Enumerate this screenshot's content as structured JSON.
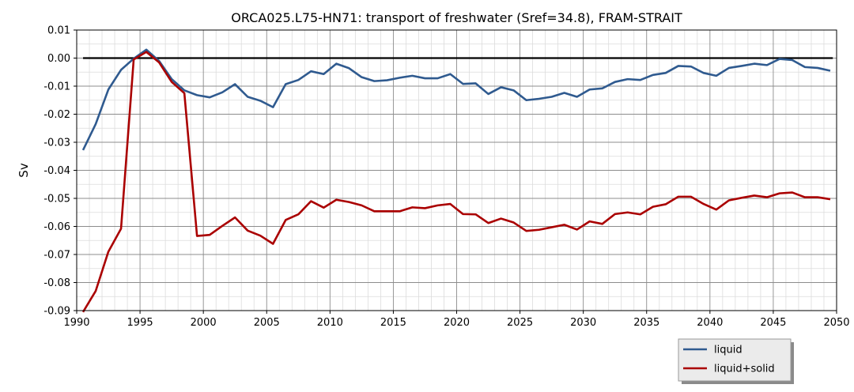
{
  "chart_data": {
    "type": "line",
    "title": "ORCA025.L75-HN71: transport of freshwater (Sref=34.8), FRAM-STRAIT",
    "xlabel": "",
    "ylabel": "Sv",
    "xlim": [
      1990,
      2050
    ],
    "ylim": [
      -0.09,
      0.01
    ],
    "xticks": [
      1990,
      1995,
      2000,
      2005,
      2010,
      2015,
      2020,
      2025,
      2030,
      2035,
      2040,
      2045,
      2050
    ],
    "yticks": [
      0.01,
      0.0,
      -0.01,
      -0.02,
      -0.03,
      -0.04,
      -0.05,
      -0.06,
      -0.07,
      -0.08,
      -0.09
    ],
    "ytick_labels": [
      "0.01",
      "0.00",
      "-0.01",
      "-0.02",
      "-0.03",
      "-0.04",
      "-0.05",
      "-0.06",
      "-0.07",
      "-0.08",
      "-0.09"
    ],
    "grid": true,
    "minor_grid": true,
    "reference_line": 0.0,
    "legend_position": "below-right",
    "x": [
      1990.5,
      1991.5,
      1992.5,
      1993.5,
      1994.5,
      1995.5,
      1996.5,
      1997.5,
      1998.5,
      1999.5,
      2000.5,
      2001.5,
      2002.5,
      2003.5,
      2004.5,
      2005.5,
      2006.5,
      2007.5,
      2008.5,
      2009.5,
      2010.5,
      2011.5,
      2012.5,
      2013.5,
      2014.5,
      2015.5,
      2016.5,
      2017.5,
      2018.5,
      2019.5,
      2020.5,
      2021.5,
      2022.5,
      2023.5,
      2024.5,
      2025.5,
      2026.5,
      2027.5,
      2028.5,
      2029.5,
      2030.5,
      2031.5,
      2032.5,
      2033.5,
      2034.5,
      2035.5,
      2036.5,
      2037.5,
      2038.5,
      2039.5,
      2040.5,
      2041.5,
      2042.5,
      2043.5,
      2044.5,
      2045.5,
      2046.5,
      2047.5,
      2048.5,
      2049.5
    ],
    "series": [
      {
        "name": "liquid",
        "color": "#2f5a8f",
        "values": [
          -0.0328,
          -0.0235,
          -0.0112,
          -0.0042,
          -0.0002,
          0.003,
          -0.001,
          -0.0075,
          -0.0115,
          -0.0132,
          -0.014,
          -0.0122,
          -0.0093,
          -0.0138,
          -0.0152,
          -0.0175,
          -0.0093,
          -0.0078,
          -0.0047,
          -0.0057,
          -0.002,
          -0.0036,
          -0.0068,
          -0.0082,
          -0.0079,
          -0.007,
          -0.0063,
          -0.0072,
          -0.0072,
          -0.0057,
          -0.0092,
          -0.009,
          -0.0128,
          -0.0104,
          -0.0115,
          -0.015,
          -0.0145,
          -0.0138,
          -0.0124,
          -0.0138,
          -0.0112,
          -0.0108,
          -0.0085,
          -0.0075,
          -0.0078,
          -0.006,
          -0.0053,
          -0.0028,
          -0.003,
          -0.0053,
          -0.0063,
          -0.0035,
          -0.0028,
          -0.002,
          -0.0025,
          -0.0003,
          -0.0007,
          -0.0032,
          -0.0035,
          -0.0045
        ]
      },
      {
        "name": "liquid+solid",
        "color": "#aa0000",
        "values": [
          -0.0905,
          -0.083,
          -0.069,
          -0.0608,
          -0.0005,
          0.0022,
          -0.0015,
          -0.0085,
          -0.0125,
          -0.0634,
          -0.063,
          -0.0598,
          -0.0568,
          -0.0615,
          -0.0633,
          -0.0662,
          -0.0577,
          -0.0557,
          -0.051,
          -0.0533,
          -0.0505,
          -0.0513,
          -0.0525,
          -0.0546,
          -0.0546,
          -0.0546,
          -0.0532,
          -0.0535,
          -0.0525,
          -0.052,
          -0.0556,
          -0.0557,
          -0.0588,
          -0.0572,
          -0.0586,
          -0.0616,
          -0.0612,
          -0.0603,
          -0.0594,
          -0.0611,
          -0.0582,
          -0.0591,
          -0.0556,
          -0.055,
          -0.0557,
          -0.053,
          -0.0521,
          -0.0494,
          -0.0494,
          -0.052,
          -0.054,
          -0.0507,
          -0.0498,
          -0.049,
          -0.0496,
          -0.0482,
          -0.0479,
          -0.0496,
          -0.0496,
          -0.0503
        ]
      }
    ]
  }
}
